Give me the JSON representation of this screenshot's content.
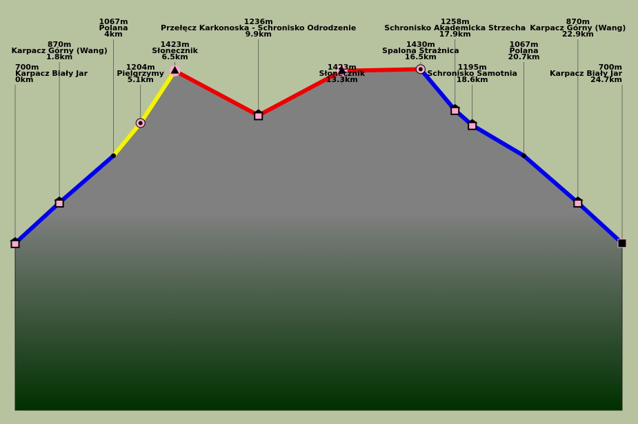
{
  "chart_data": {
    "type": "area",
    "title": "",
    "xlabel": "",
    "ylabel": "",
    "x_unit": "km",
    "y_unit": "m",
    "xlim": [
      0,
      24.7
    ],
    "ylim": [
      0,
      1720
    ],
    "grid": false,
    "fill_gradient": [
      "#808080",
      "#808080",
      "#003000"
    ],
    "colors": {
      "blue": "#0000ee",
      "yellow": "#f4f400",
      "red": "#ee0000",
      "marker_fill": "#ffa8d0"
    },
    "segments": [
      {
        "color": "blue",
        "from_km": 0,
        "to_km": 4
      },
      {
        "color": "yellow",
        "from_km": 4,
        "to_km": 6.5
      },
      {
        "color": "red",
        "from_km": 6.5,
        "to_km": 16.5
      },
      {
        "color": "blue",
        "from_km": 16.5,
        "to_km": 24.7
      }
    ],
    "points": [
      {
        "name": "Karpacz Biały Jar",
        "elev": 700,
        "dist": 0,
        "elev_label": "700m",
        "dist_label": "0km",
        "marker": "hut-square",
        "anchor": "start"
      },
      {
        "name": "Karpacz Górny (Wang)",
        "elev": 870,
        "dist": 1.8,
        "elev_label": "870m",
        "dist_label": "1.8km",
        "marker": "hut-square",
        "anchor": "middle"
      },
      {
        "name": "Polana",
        "elev": 1067,
        "dist": 4,
        "elev_label": "1067m",
        "dist_label": "4km",
        "marker": "dot",
        "anchor": "middle"
      },
      {
        "name": "Pielgrzymy",
        "elev": 1204,
        "dist": 5.1,
        "elev_label": "1204m",
        "dist_label": "5.1km",
        "marker": "ring",
        "anchor": "middle"
      },
      {
        "name": "Słonecznik",
        "elev": 1423,
        "dist": 6.5,
        "elev_label": "1423m",
        "dist_label": "6.5km",
        "marker": "peak",
        "anchor": "middle"
      },
      {
        "name": "Przełęcz Karkonoska - Schronisko Odrodzenie",
        "elev": 1236,
        "dist": 9.9,
        "elev_label": "1236m",
        "dist_label": "9.9km",
        "marker": "hut-square",
        "anchor": "middle"
      },
      {
        "name": "Słonecznik",
        "elev": 1423,
        "dist": 13.3,
        "elev_label": "1423m",
        "dist_label": "13.3km",
        "marker": "peak",
        "anchor": "middle"
      },
      {
        "name": "Spalona Strażnica",
        "elev": 1430,
        "dist": 16.5,
        "elev_label": "1430m",
        "dist_label": "16.5km",
        "marker": "ring",
        "anchor": "middle"
      },
      {
        "name": "Schronisko Akademicka Strzecha",
        "elev": 1258,
        "dist": 17.9,
        "elev_label": "1258m",
        "dist_label": "17.9km",
        "marker": "hut-square",
        "anchor": "middle"
      },
      {
        "name": "Schronisko Samotnia",
        "elev": 1195,
        "dist": 18.6,
        "elev_label": "1195m",
        "dist_label": "18.6km",
        "marker": "hut-square",
        "anchor": "middle"
      },
      {
        "name": "Polana",
        "elev": 1067,
        "dist": 20.7,
        "elev_label": "1067m",
        "dist_label": "20.7km",
        "marker": "dot",
        "anchor": "middle"
      },
      {
        "name": "Karpacz Górny (Wang)",
        "elev": 870,
        "dist": 22.9,
        "elev_label": "870m",
        "dist_label": "22.9km",
        "marker": "hut-square",
        "anchor": "middle"
      },
      {
        "name": "Karpacz Biały Jar",
        "elev": 700,
        "dist": 24.7,
        "elev_label": "700m",
        "dist_label": "24.7km",
        "marker": "end-square",
        "anchor": "end"
      }
    ]
  }
}
